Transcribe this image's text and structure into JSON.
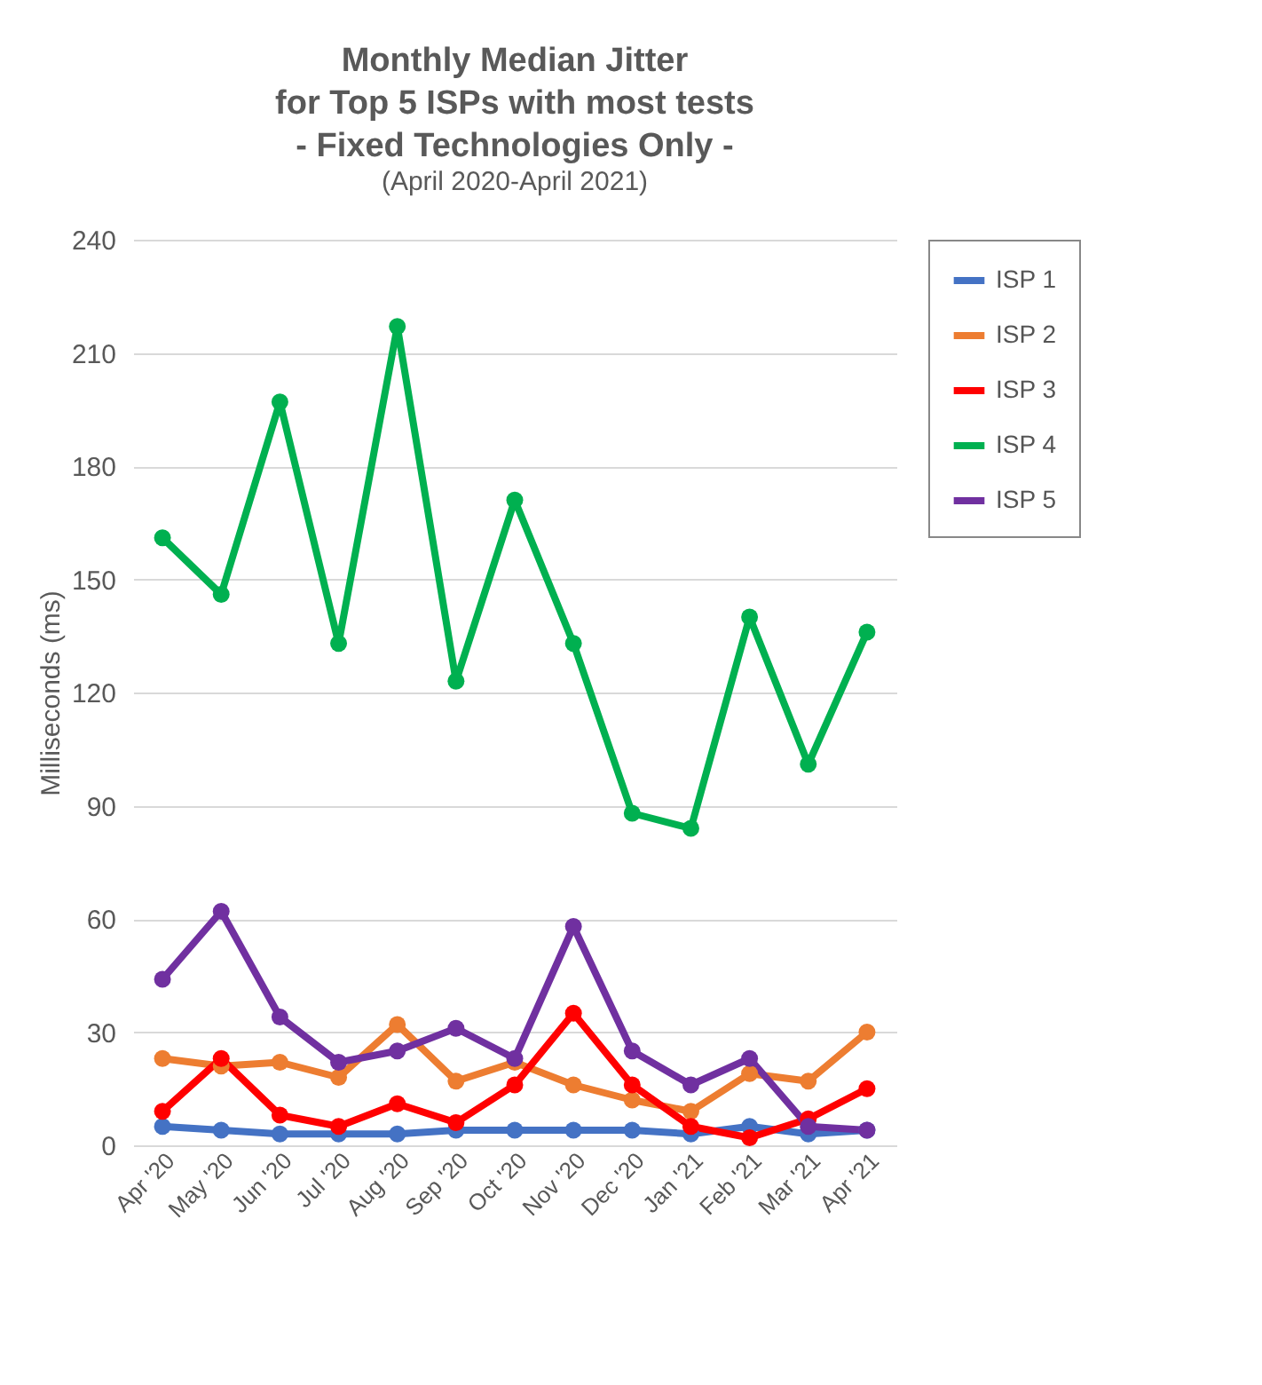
{
  "chart_data": {
    "type": "line",
    "title": "Monthly Median Jitter\nfor Top 5 ISPs with most tests\n- Fixed Technologies Only -",
    "subtitle": "(April 2020-April 2021)",
    "ylabel": "Milliseconds (ms)",
    "categories": [
      "Apr '20",
      "May '20",
      "Jun '20",
      "Jul '20",
      "Aug '20",
      "Sep '20",
      "Oct '20",
      "Nov '20",
      "Dec '20",
      "Jan '21",
      "Feb '21",
      "Mar '21",
      "Apr '21"
    ],
    "series": [
      {
        "name": "ISP 1",
        "color": "#4472c4",
        "values": [
          5,
          4,
          3,
          3,
          3,
          4,
          4,
          4,
          4,
          3,
          5,
          3,
          4
        ]
      },
      {
        "name": "ISP 2",
        "color": "#ed7d31",
        "values": [
          23,
          21,
          22,
          18,
          32,
          17,
          22,
          16,
          12,
          9,
          19,
          17,
          30
        ]
      },
      {
        "name": "ISP 3",
        "color": "#ff0000",
        "values": [
          9,
          23,
          8,
          5,
          11,
          6,
          16,
          35,
          16,
          5,
          2,
          7,
          15
        ]
      },
      {
        "name": "ISP 4",
        "color": "#00b050",
        "values": [
          161,
          146,
          197,
          133,
          217,
          123,
          171,
          133,
          88,
          84,
          140,
          101,
          136
        ]
      },
      {
        "name": "ISP 5",
        "color": "#7030a0",
        "values": [
          44,
          62,
          34,
          22,
          25,
          31,
          23,
          58,
          25,
          16,
          23,
          5,
          4
        ]
      }
    ],
    "ylim": [
      0,
      240
    ],
    "yticks": [
      0,
      30,
      60,
      90,
      120,
      150,
      180,
      210,
      240
    ],
    "grid": "y",
    "legend": "right",
    "marker": "circle",
    "line_style": "solid"
  }
}
